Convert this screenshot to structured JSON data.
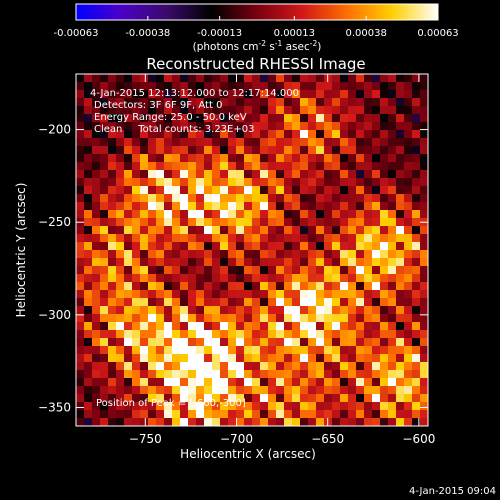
{
  "colorbar": {
    "ticks": [
      "-0.00063",
      "-0.00038",
      "-0.00013",
      "0.00013",
      "0.00038",
      "0.00063"
    ],
    "tick_values": [
      -0.00063,
      -0.00038,
      -0.00013,
      0.00013,
      0.00038,
      0.00063
    ],
    "range": [
      -0.00063,
      0.00063
    ],
    "colormap": [
      "#0000ff",
      "#4b00c8",
      "#3a0a6a",
      "#000000",
      "#7a0010",
      "#d01818",
      "#ff7000",
      "#ffd000",
      "#ffffff"
    ]
  },
  "units_line": {
    "prefix": "(photons cm",
    "sup1": "-2",
    "mid1": " s",
    "sup2": "-1",
    "mid2": " asec",
    "sup3": "-2",
    "suffix": ")"
  },
  "chart_data": {
    "type": "heatmap",
    "title": "Reconstructed RHESSI Image",
    "xlabel": "Heliocentric X (arcsec)",
    "ylabel": "Heliocentric Y (arcsec)",
    "xlim": [
      -788,
      -595
    ],
    "ylim": [
      -360,
      -170
    ],
    "xticks": [
      -750,
      -700,
      -650,
      -600
    ],
    "yticks": [
      -200,
      -250,
      -300,
      -350
    ],
    "xtick_labels": [
      "−750",
      "−700",
      "−650",
      "−600"
    ],
    "ytick_labels": [
      "−200",
      "−250",
      "−300",
      "−350"
    ],
    "annotations": [
      "4-Jan-2015 12:13:12.000 to 12:17:14.000",
      "Detectors: 3F 6F 9F, Att 0",
      "Energy Range: 25.0 - 50.0 keV",
      "Clean     Total counts: 3.23E+03"
    ],
    "peak_label": "Position of Peak = [-660,-300]",
    "peak": [
      -660,
      -300
    ],
    "sources": [
      {
        "x": -715,
        "y": -322,
        "value": 1.0
      },
      {
        "x": -660,
        "y": -300,
        "value": 0.95
      },
      {
        "x": -700,
        "y": -240,
        "value": 0.75
      },
      {
        "x": -740,
        "y": -235,
        "value": 0.7
      },
      {
        "x": -755,
        "y": -310,
        "value": 0.65
      },
      {
        "x": -620,
        "y": -265,
        "value": 0.8
      },
      {
        "x": -610,
        "y": -335,
        "value": 0.75
      },
      {
        "x": -660,
        "y": -200,
        "value": 0.5
      },
      {
        "x": -725,
        "y": -355,
        "value": 0.55
      },
      {
        "x": -770,
        "y": -270,
        "value": 0.45
      },
      {
        "x": -670,
        "y": -350,
        "value": 0.5
      }
    ]
  },
  "footer": {
    "timestamp": "4-Jan-2015 09:04"
  }
}
